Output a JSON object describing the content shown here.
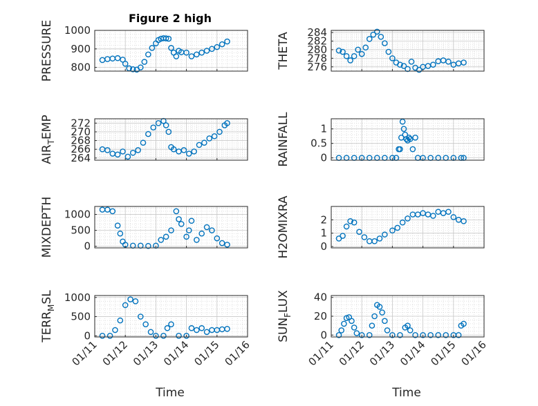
{
  "figure": {
    "title": "Figure 2 high"
  },
  "x_axis": {
    "xlabel": "Time",
    "range": [
      "2023-01-11",
      "2023-01-16"
    ],
    "tick_labels": [
      "01/11",
      "01/12",
      "01/13",
      "01/14",
      "01/15",
      "01/16"
    ]
  },
  "style": {
    "marker_color": "#0072BD",
    "axis_color": "#262626",
    "grid_color": "#d9d9d9",
    "background": "#ffffff"
  },
  "chart_data": [
    {
      "id": "pressure",
      "type": "scatter",
      "ylabel": "PRESSURE",
      "ylim": [
        780,
        1000
      ],
      "yticks": [
        800,
        900,
        1000
      ],
      "ytick_labels": [
        "800",
        "900",
        "1000"
      ],
      "grid": true,
      "x": [
        "2023-01-11 06:00",
        "2023-01-11 10:00",
        "2023-01-11 14:00",
        "2023-01-11 18:00",
        "2023-01-11 22:00",
        "2023-01-12 00:00",
        "2023-01-12 03:00",
        "2023-01-12 06:00",
        "2023-01-12 09:00",
        "2023-01-12 12:00",
        "2023-01-12 15:00",
        "2023-01-12 18:00",
        "2023-01-12 21:00",
        "2023-01-13 00:00",
        "2023-01-13 02:00",
        "2023-01-13 04:00",
        "2023-01-13 06:00",
        "2023-01-13 08:00",
        "2023-01-13 10:00",
        "2023-01-13 12:00",
        "2023-01-13 14:00",
        "2023-01-13 16:00",
        "2023-01-13 18:00",
        "2023-01-13 20:00",
        "2023-01-14 00:00",
        "2023-01-14 04:00",
        "2023-01-14 08:00",
        "2023-01-14 12:00",
        "2023-01-14 16:00",
        "2023-01-14 20:00",
        "2023-01-15 00:00",
        "2023-01-15 04:00",
        "2023-01-15 08:00"
      ],
      "y": [
        840,
        845,
        848,
        850,
        842,
        820,
        795,
        790,
        788,
        800,
        830,
        870,
        905,
        930,
        948,
        955,
        958,
        957,
        955,
        905,
        880,
        860,
        890,
        882,
        880,
        860,
        870,
        880,
        890,
        900,
        910,
        925,
        940
      ]
    },
    {
      "id": "theta",
      "type": "scatter",
      "ylabel": "THETA",
      "ylim": [
        275,
        284.5
      ],
      "yticks": [
        276,
        278,
        280,
        282,
        284
      ],
      "ytick_labels": [
        "276",
        "278",
        "280",
        "282",
        "284"
      ],
      "grid": true,
      "x": [
        "2023-01-11 06:00",
        "2023-01-11 09:00",
        "2023-01-11 12:00",
        "2023-01-11 15:00",
        "2023-01-11 18:00",
        "2023-01-11 21:00",
        "2023-01-12 00:00",
        "2023-01-12 03:00",
        "2023-01-12 06:00",
        "2023-01-12 09:00",
        "2023-01-12 12:00",
        "2023-01-12 15:00",
        "2023-01-12 18:00",
        "2023-01-12 21:00",
        "2023-01-13 00:00",
        "2023-01-13 03:00",
        "2023-01-13 06:00",
        "2023-01-13 09:00",
        "2023-01-13 12:00",
        "2023-01-13 15:00",
        "2023-01-13 18:00",
        "2023-01-13 21:00",
        "2023-01-14 00:00",
        "2023-01-14 04:00",
        "2023-01-14 08:00",
        "2023-01-14 12:00",
        "2023-01-14 16:00",
        "2023-01-14 20:00",
        "2023-01-15 00:00",
        "2023-01-15 04:00",
        "2023-01-15 08:00"
      ],
      "y": [
        279.8,
        279.5,
        278.5,
        277.5,
        278.5,
        280,
        279,
        280.5,
        282.5,
        283.5,
        284.2,
        283,
        281.5,
        279.5,
        278,
        277,
        276.5,
        276.2,
        275.5,
        277.2,
        275.8,
        275.3,
        276,
        276.2,
        276.5,
        277.3,
        277.5,
        277.2,
        276.5,
        276.8,
        277
      ]
    },
    {
      "id": "air_temp",
      "type": "scatter",
      "ylabel": "AIR_TEMP",
      "ylim": [
        263.5,
        273
      ],
      "yticks": [
        264,
        266,
        268,
        270,
        272
      ],
      "ytick_labels": [
        "264",
        "266",
        "268",
        "270",
        "272"
      ],
      "grid": true,
      "x": [
        "2023-01-11 06:00",
        "2023-01-11 10:00",
        "2023-01-11 14:00",
        "2023-01-11 18:00",
        "2023-01-11 22:00",
        "2023-01-12 02:00",
        "2023-01-12 06:00",
        "2023-01-12 10:00",
        "2023-01-12 14:00",
        "2023-01-12 18:00",
        "2023-01-12 22:00",
        "2023-01-13 02:00",
        "2023-01-13 06:00",
        "2023-01-13 08:00",
        "2023-01-13 10:00",
        "2023-01-13 12:00",
        "2023-01-13 14:00",
        "2023-01-13 18:00",
        "2023-01-13 22:00",
        "2023-01-14 02:00",
        "2023-01-14 06:00",
        "2023-01-14 10:00",
        "2023-01-14 14:00",
        "2023-01-14 18:00",
        "2023-01-14 22:00",
        "2023-01-15 02:00",
        "2023-01-15 06:00",
        "2023-01-15 08:00"
      ],
      "y": [
        266,
        265.8,
        265,
        264.8,
        265.5,
        264.3,
        265.2,
        265.8,
        267.5,
        269.5,
        271,
        272,
        272.5,
        271.5,
        270,
        266.5,
        266,
        265.5,
        265.8,
        265,
        265.5,
        267,
        267.5,
        268.5,
        269,
        270,
        271.5,
        272
      ]
    },
    {
      "id": "rainfall",
      "type": "scatter",
      "ylabel": "RAINFALL",
      "ylim": [
        -0.08,
        1.35
      ],
      "yticks": [
        0,
        0.5,
        1
      ],
      "ytick_labels": [
        "0",
        "0.5",
        "1"
      ],
      "grid": true,
      "x": [
        "2023-01-11 06:00",
        "2023-01-11 12:00",
        "2023-01-11 18:00",
        "2023-01-12 00:00",
        "2023-01-12 06:00",
        "2023-01-12 12:00",
        "2023-01-12 18:00",
        "2023-01-13 00:00",
        "2023-01-13 03:00",
        "2023-01-13 05:00",
        "2023-01-13 06:00",
        "2023-01-13 07:00",
        "2023-01-13 08:00",
        "2023-01-13 09:00",
        "2023-01-13 10:00",
        "2023-01-13 11:00",
        "2023-01-13 12:00",
        "2023-01-13 13:00",
        "2023-01-13 14:00",
        "2023-01-13 16:00",
        "2023-01-13 18:00",
        "2023-01-13 20:00",
        "2023-01-14 00:00",
        "2023-01-14 06:00",
        "2023-01-14 12:00",
        "2023-01-14 18:00",
        "2023-01-15 00:00",
        "2023-01-15 06:00",
        "2023-01-15 08:00"
      ],
      "y": [
        0,
        0,
        0,
        0,
        0,
        0,
        0,
        0,
        0,
        0.3,
        0.3,
        0.7,
        1.25,
        1.0,
        0.8,
        0.65,
        0.6,
        0.7,
        0.65,
        0.3,
        0.7,
        0,
        0,
        0,
        0,
        0,
        0,
        0,
        0
      ]
    },
    {
      "id": "mixdepth",
      "type": "scatter",
      "ylabel": "MIXDEPTH",
      "ylim": [
        -50,
        1250
      ],
      "yticks": [
        0,
        500,
        1000
      ],
      "ytick_labels": [
        "0",
        "500",
        "1000"
      ],
      "grid": true,
      "x": [
        "2023-01-11 06:00",
        "2023-01-11 10:00",
        "2023-01-11 14:00",
        "2023-01-11 18:00",
        "2023-01-11 20:00",
        "2023-01-11 22:00",
        "2023-01-12 00:00",
        "2023-01-12 06:00",
        "2023-01-12 12:00",
        "2023-01-12 18:00",
        "2023-01-13 00:00",
        "2023-01-13 04:00",
        "2023-01-13 08:00",
        "2023-01-13 12:00",
        "2023-01-13 16:00",
        "2023-01-13 18:00",
        "2023-01-13 20:00",
        "2023-01-14 00:00",
        "2023-01-14 02:00",
        "2023-01-14 04:00",
        "2023-01-14 08:00",
        "2023-01-14 12:00",
        "2023-01-14 16:00",
        "2023-01-14 20:00",
        "2023-01-15 00:00",
        "2023-01-15 04:00",
        "2023-01-15 08:00"
      ],
      "y": [
        1150,
        1150,
        1100,
        650,
        400,
        150,
        50,
        20,
        20,
        10,
        20,
        200,
        300,
        500,
        1100,
        850,
        700,
        300,
        500,
        800,
        200,
        400,
        600,
        500,
        250,
        100,
        50
      ]
    },
    {
      "id": "h2omixra",
      "type": "scatter",
      "ylabel": "H2OMIXRA",
      "ylim": [
        -0.1,
        3
      ],
      "yticks": [
        0,
        1,
        2
      ],
      "ytick_labels": [
        "0",
        "1",
        "2"
      ],
      "grid": true,
      "x": [
        "2023-01-11 06:00",
        "2023-01-11 09:00",
        "2023-01-11 12:00",
        "2023-01-11 15:00",
        "2023-01-11 18:00",
        "2023-01-11 22:00",
        "2023-01-12 02:00",
        "2023-01-12 06:00",
        "2023-01-12 10:00",
        "2023-01-12 14:00",
        "2023-01-12 18:00",
        "2023-01-13 00:00",
        "2023-01-13 04:00",
        "2023-01-13 08:00",
        "2023-01-13 12:00",
        "2023-01-13 16:00",
        "2023-01-13 20:00",
        "2023-01-14 00:00",
        "2023-01-14 04:00",
        "2023-01-14 08:00",
        "2023-01-14 12:00",
        "2023-01-14 16:00",
        "2023-01-14 20:00",
        "2023-01-15 00:00",
        "2023-01-15 04:00",
        "2023-01-15 08:00"
      ],
      "y": [
        0.6,
        0.8,
        1.5,
        1.9,
        1.8,
        1.1,
        0.7,
        0.4,
        0.4,
        0.6,
        0.9,
        1.2,
        1.4,
        1.8,
        2.1,
        2.4,
        2.4,
        2.5,
        2.4,
        2.3,
        2.6,
        2.5,
        2.6,
        2.2,
        2.0,
        1.9
      ]
    },
    {
      "id": "terr_msl",
      "type": "scatter",
      "ylabel": "TERR_MSL",
      "ylim": [
        -30,
        1050
      ],
      "yticks": [
        0,
        500,
        1000
      ],
      "ytick_labels": [
        "0",
        "500",
        "1000"
      ],
      "grid": true,
      "x": [
        "2023-01-11 06:00",
        "2023-01-11 12:00",
        "2023-01-11 16:00",
        "2023-01-11 20:00",
        "2023-01-12 00:00",
        "2023-01-12 04:00",
        "2023-01-12 08:00",
        "2023-01-12 12:00",
        "2023-01-12 16:00",
        "2023-01-12 20:00",
        "2023-01-13 00:00",
        "2023-01-13 06:00",
        "2023-01-13 09:00",
        "2023-01-13 12:00",
        "2023-01-13 18:00",
        "2023-01-14 00:00",
        "2023-01-14 04:00",
        "2023-01-14 08:00",
        "2023-01-14 12:00",
        "2023-01-14 16:00",
        "2023-01-14 20:00",
        "2023-01-15 00:00",
        "2023-01-15 04:00",
        "2023-01-15 08:00"
      ],
      "y": [
        0,
        0,
        150,
        400,
        800,
        950,
        900,
        500,
        300,
        100,
        0,
        0,
        200,
        300,
        0,
        0,
        200,
        150,
        200,
        100,
        150,
        150,
        170,
        180
      ]
    },
    {
      "id": "sun_flux",
      "type": "scatter",
      "ylabel": "SUN_FLUX",
      "ylim": [
        -2,
        42
      ],
      "yticks": [
        0,
        20,
        40
      ],
      "ytick_labels": [
        "0",
        "20",
        "40"
      ],
      "grid": true,
      "x": [
        "2023-01-11 06:00",
        "2023-01-11 08:00",
        "2023-01-11 10:00",
        "2023-01-11 12:00",
        "2023-01-11 14:00",
        "2023-01-11 16:00",
        "2023-01-11 18:00",
        "2023-01-11 20:00",
        "2023-01-12 00:00",
        "2023-01-12 06:00",
        "2023-01-12 08:00",
        "2023-01-12 10:00",
        "2023-01-12 12:00",
        "2023-01-12 14:00",
        "2023-01-12 16:00",
        "2023-01-12 18:00",
        "2023-01-12 20:00",
        "2023-01-13 00:00",
        "2023-01-13 06:00",
        "2023-01-13 10:00",
        "2023-01-13 12:00",
        "2023-01-13 14:00",
        "2023-01-13 18:00",
        "2023-01-14 00:00",
        "2023-01-14 06:00",
        "2023-01-14 12:00",
        "2023-01-14 18:00",
        "2023-01-15 00:00",
        "2023-01-15 04:00",
        "2023-01-15 06:00",
        "2023-01-15 08:00"
      ],
      "y": [
        0,
        5,
        12,
        18,
        19,
        15,
        8,
        2,
        0,
        0,
        10,
        20,
        32,
        30,
        24,
        15,
        5,
        0,
        0,
        8,
        10,
        5,
        0,
        0,
        0,
        0,
        0,
        0,
        0,
        10,
        12
      ]
    }
  ]
}
